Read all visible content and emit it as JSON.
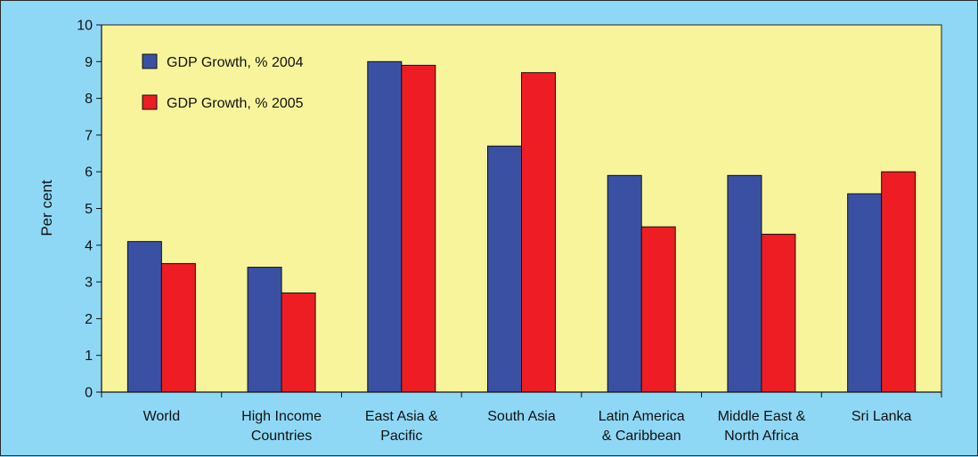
{
  "chart_data": {
    "type": "bar",
    "categories": [
      [
        "World"
      ],
      [
        "High Income",
        "Countries"
      ],
      [
        "East Asia &",
        "Pacific"
      ],
      [
        "South Asia"
      ],
      [
        "Latin America",
        "& Caribbean"
      ],
      [
        "Middle East &",
        "North Africa"
      ],
      [
        "Sri Lanka"
      ]
    ],
    "series": [
      {
        "name": "GDP Growth, % 2004",
        "color": "#3a51a3",
        "values": [
          4.1,
          3.4,
          9.0,
          6.7,
          5.9,
          5.9,
          5.4
        ]
      },
      {
        "name": "GDP Growth, % 2005",
        "color": "#ee1d23",
        "values": [
          3.5,
          2.7,
          8.9,
          8.7,
          4.5,
          4.3,
          6.0
        ]
      }
    ],
    "title": "",
    "xlabel": "",
    "ylabel": "Per cent",
    "ylim": [
      0,
      10
    ],
    "yticks": [
      0,
      1,
      2,
      3,
      4,
      5,
      6,
      7,
      8,
      9,
      10
    ],
    "grid": false,
    "legend_position": "top-left",
    "plot_background": "#f7f49c",
    "page_background": "#8fd8f5"
  }
}
